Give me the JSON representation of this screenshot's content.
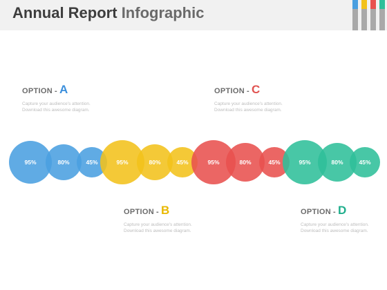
{
  "header": {
    "title_part1": "Annual Report",
    "title_part2": "Infographic",
    "bar_colors": [
      "#4a9fe0",
      "#f2c21b",
      "#e8514f",
      "#2fbf9a"
    ]
  },
  "options": [
    {
      "label": "OPTION",
      "dash": "-",
      "letter": "A",
      "color": "#3b8fdc",
      "desc": "Capture your audience's attention. Download this awesome diagram."
    },
    {
      "label": "OPTION",
      "dash": "-",
      "letter": "B",
      "color": "#e9b800",
      "desc": "Capture your audience's attention. Download this awesome diagram."
    },
    {
      "label": "OPTION",
      "dash": "-",
      "letter": "C",
      "color": "#e05350",
      "desc": "Capture your audience's attention. Download this awesome diagram."
    },
    {
      "label": "OPTION",
      "dash": "-",
      "letter": "D",
      "color": "#1fae8c",
      "desc": "Capture your audience's attention. Download this awesome diagram."
    }
  ],
  "circle_groups": [
    {
      "color": "#4a9fe0",
      "values": [
        "95%",
        "80%",
        "45%"
      ]
    },
    {
      "color": "#f2c21b",
      "values": [
        "95%",
        "80%",
        "45%"
      ]
    },
    {
      "color": "#e8514f",
      "values": [
        "95%",
        "80%",
        "45%"
      ]
    },
    {
      "color": "#2fbf9a",
      "values": [
        "95%",
        "80%",
        "45%"
      ]
    }
  ]
}
